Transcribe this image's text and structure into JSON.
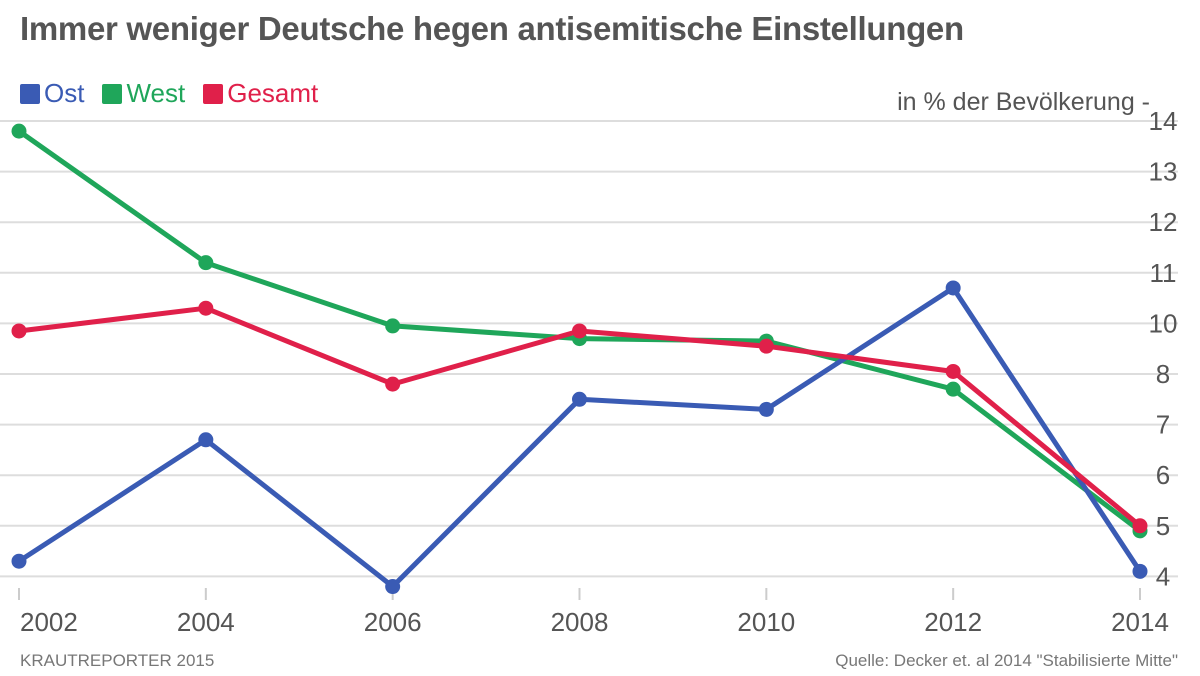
{
  "title": "Immer weniger Deutsche hegen antisemitische Einstellungen",
  "unit_label": "in % der Bevölkerung -",
  "footer_left": "KRAUTREPORTER 2015",
  "footer_right": "Quelle: Decker et. al 2014 \"Stabilisierte Mitte\"",
  "chart_data": {
    "type": "line",
    "x": [
      2002,
      2004,
      2006,
      2008,
      2010,
      2012,
      2014
    ],
    "x_tick_labels": [
      "2002",
      "2004",
      "2006",
      "2008",
      "2010",
      "2012",
      "2014"
    ],
    "y_tick_labels": [
      "4",
      "5",
      "6",
      "7",
      "8",
      "10",
      "11",
      "12",
      "13",
      "14"
    ],
    "y_axis_position": "right",
    "legend_position": "top-left",
    "grid": true,
    "series": [
      {
        "name": "Ost",
        "color": "#3a5bb4",
        "values": [
          4.3,
          6.7,
          3.8,
          7.5,
          7.3,
          10.7,
          4.1
        ]
      },
      {
        "name": "West",
        "color": "#1fa65a",
        "values": [
          13.8,
          11.2,
          9.9,
          9.4,
          9.3,
          7.7,
          4.9
        ]
      },
      {
        "name": "Gesamt",
        "color": "#e0204a",
        "values": [
          9.7,
          10.3,
          7.8,
          9.7,
          9.1,
          8.1,
          5.0
        ]
      }
    ]
  }
}
